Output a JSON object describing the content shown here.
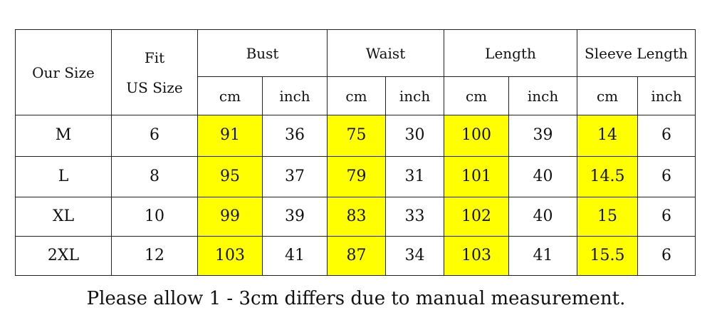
{
  "table": {
    "header": {
      "our_size": "Our Size",
      "fit_line1": "Fit",
      "fit_line2": "US Size",
      "groups": [
        "Bust",
        "Waist",
        "Length",
        "Sleeve Length"
      ],
      "units": [
        "cm",
        "inch",
        "cm",
        "inch",
        "cm",
        "inch",
        "cm",
        "inch"
      ]
    },
    "rows": [
      {
        "size": "M",
        "us": "6",
        "bust_cm": "91",
        "bust_in": "36",
        "waist_cm": "75",
        "waist_in": "30",
        "length_cm": "100",
        "length_in": "39",
        "sleeve_cm": "14",
        "sleeve_in": "6"
      },
      {
        "size": "L",
        "us": "8",
        "bust_cm": "95",
        "bust_in": "37",
        "waist_cm": "79",
        "waist_in": "31",
        "length_cm": "101",
        "length_in": "40",
        "sleeve_cm": "14.5",
        "sleeve_in": "6"
      },
      {
        "size": "XL",
        "us": "10",
        "bust_cm": "99",
        "bust_in": "39",
        "waist_cm": "83",
        "waist_in": "33",
        "length_cm": "102",
        "length_in": "40",
        "sleeve_cm": "15",
        "sleeve_in": "6"
      },
      {
        "size": "2XL",
        "us": "12",
        "bust_cm": "103",
        "bust_in": "41",
        "waist_cm": "87",
        "waist_in": "34",
        "length_cm": "103",
        "length_in": "41",
        "sleeve_cm": "15.5",
        "sleeve_in": "6"
      }
    ]
  },
  "note": "Please allow 1 - 3cm differs due to manual measurement.",
  "colors": {
    "highlight": "#ffff00",
    "border": "#222222",
    "text": "#111111"
  }
}
